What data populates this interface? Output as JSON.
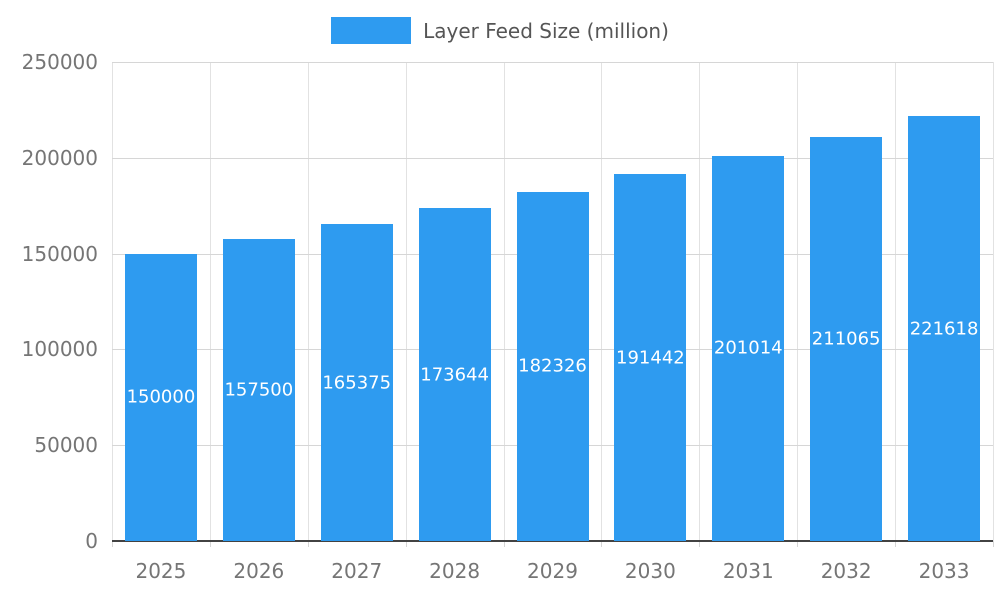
{
  "legend": {
    "label": "Layer Feed Size (million)"
  },
  "colors": {
    "bar": "#2e9bf0",
    "value_label": "#ffffff",
    "axis_text": "#757575",
    "legend_text": "#555555",
    "grid_h": "#d6d6d6",
    "grid_v": "#e2e2e2",
    "baseline": "#424242",
    "background": "#ffffff"
  },
  "chart_data": {
    "type": "bar",
    "title": "",
    "xlabel": "",
    "ylabel": "",
    "categories": [
      "2025",
      "2026",
      "2027",
      "2028",
      "2029",
      "2030",
      "2031",
      "2032",
      "2033"
    ],
    "series": [
      {
        "name": "Layer Feed Size (million)",
        "values": [
          150000,
          157500,
          165375,
          173644,
          182326,
          191442,
          201014,
          211065,
          221618
        ]
      }
    ],
    "value_labels": [
      "150000",
      "157500",
      "165375",
      "173644",
      "182326",
      "191442",
      "201014",
      "211065",
      "221618"
    ],
    "ylim": [
      0,
      250000
    ],
    "yticks": [
      0,
      50000,
      100000,
      150000,
      200000,
      250000
    ],
    "ytick_labels": [
      "0",
      "50000",
      "100000",
      "150000",
      "200000",
      "250000"
    ],
    "grid": "on",
    "legend_position": "top-center",
    "bar_labels_position": "center-inside"
  }
}
